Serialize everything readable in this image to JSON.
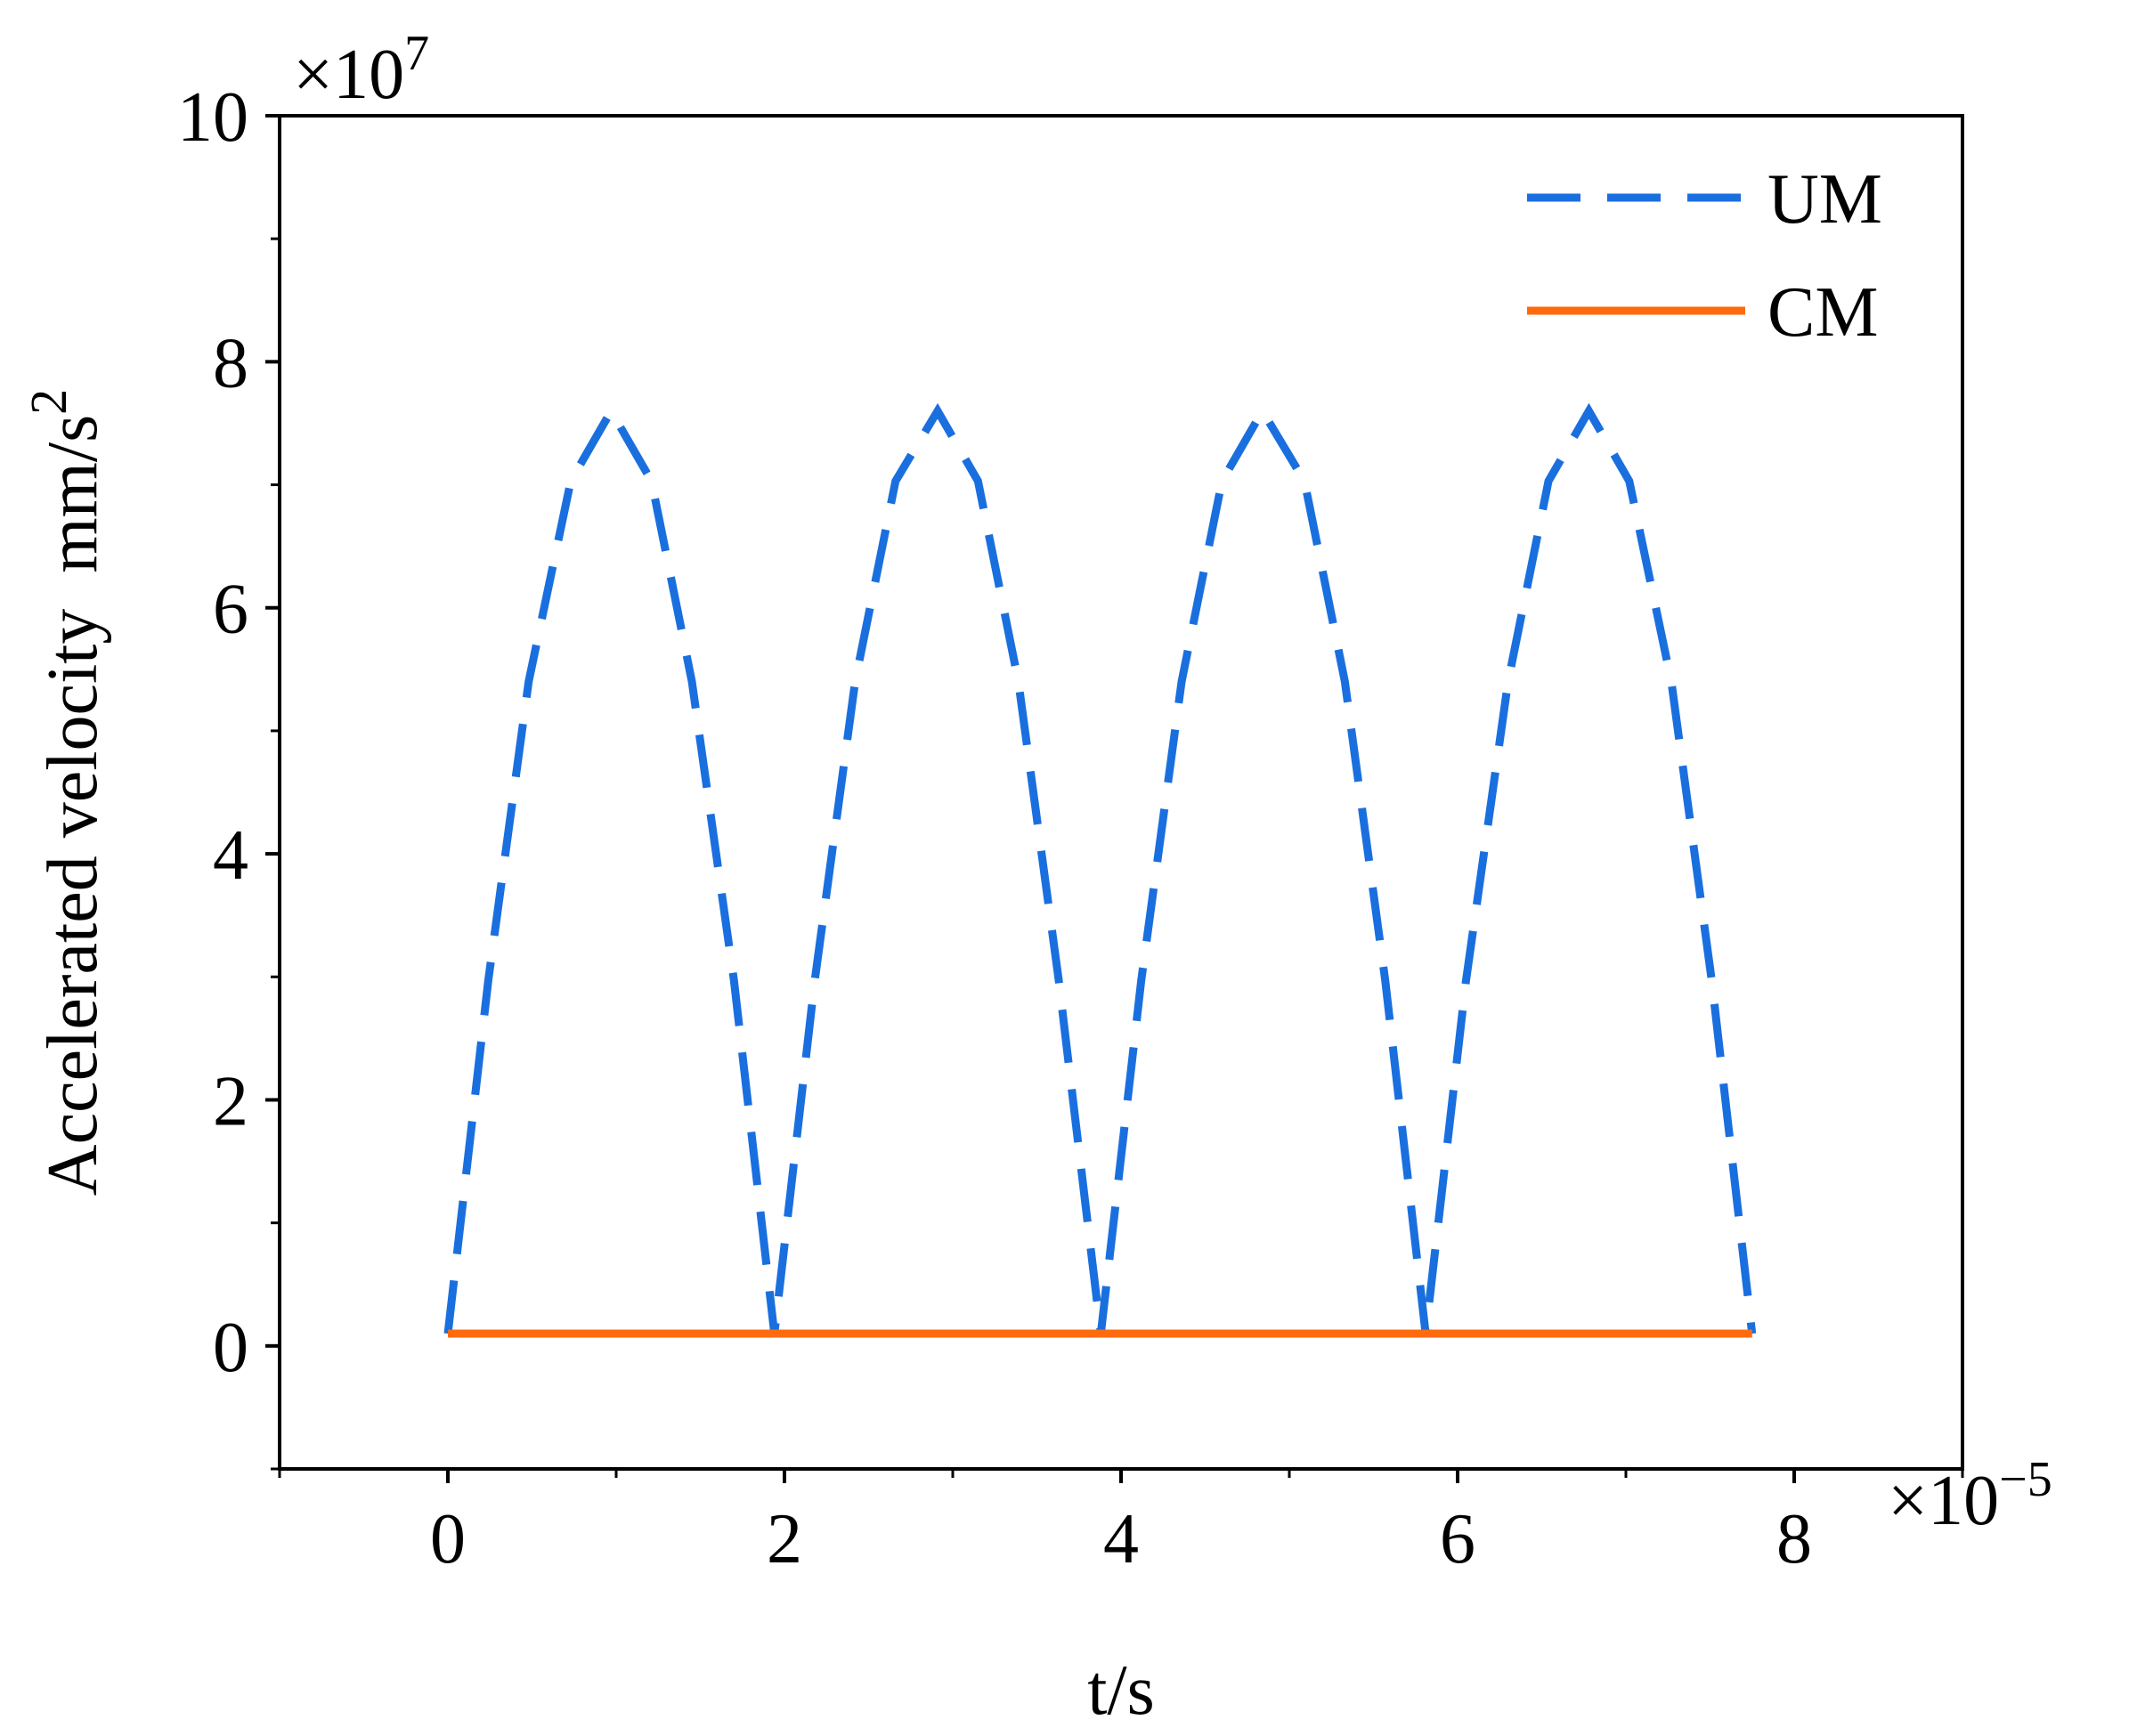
{
  "chart_data": {
    "type": "line",
    "x_label": "t/s",
    "y_label": "Accelerated velocity  mm/s",
    "y_label_superscript": "2",
    "x_multiplier": "×10",
    "x_multiplier_exponent": "−5",
    "y_multiplier": "×10",
    "y_multiplier_exponent": "7",
    "xlim": [
      -1,
      9
    ],
    "ylim": [
      -1,
      10
    ],
    "xticks": [
      0,
      2,
      4,
      6,
      8
    ],
    "yticks": [
      0,
      2,
      4,
      6,
      8,
      10
    ],
    "xticks_minor": [
      -1,
      1,
      3,
      5,
      7,
      9
    ],
    "yticks_minor": [
      -1,
      1,
      3,
      5,
      7,
      9
    ],
    "legend": "upper right",
    "series": [
      {
        "name": "UM",
        "color": "#1a6fdf",
        "linestyle": "dashed",
        "x": [
          0,
          0.24,
          0.48,
          0.73,
          0.97,
          1.21,
          1.45,
          1.7,
          1.94,
          2.18,
          2.42,
          2.66,
          2.91,
          3.15,
          3.39,
          3.63,
          3.88,
          4.12,
          4.36,
          4.6,
          4.84,
          5.09,
          5.33,
          5.57,
          5.81,
          6.05,
          6.3,
          6.54,
          6.78,
          7.02,
          7.27,
          7.51,
          7.75
        ],
        "values": [
          0.1,
          2.97,
          5.4,
          7.03,
          7.6,
          7.03,
          5.4,
          2.97,
          0.1,
          2.97,
          5.4,
          7.03,
          7.6,
          7.03,
          5.4,
          2.97,
          0.1,
          2.97,
          5.4,
          7.03,
          7.6,
          7.03,
          5.4,
          2.97,
          0.1,
          2.97,
          5.4,
          7.03,
          7.6,
          7.03,
          5.4,
          2.97,
          0.1
        ]
      },
      {
        "name": "CM",
        "color": "#ff6a0e",
        "linestyle": "solid",
        "x": [
          0,
          7.75
        ],
        "values": [
          0.1,
          0.1
        ]
      }
    ]
  }
}
